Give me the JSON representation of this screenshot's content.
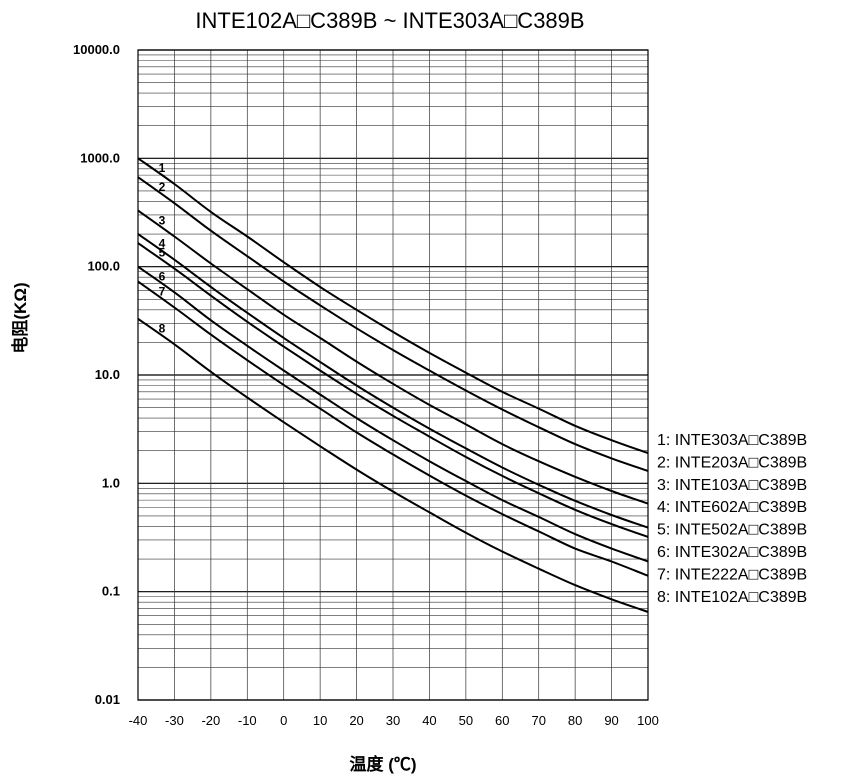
{
  "chart_data": {
    "type": "line",
    "title": "INTE102A□C389B ~ INTE303A□C389B",
    "xlabel": "温度 (℃)",
    "ylabel": "电阻(KΩ)",
    "xlim": [
      -40,
      100
    ],
    "ylim": [
      0.01,
      10000
    ],
    "yscale": "log",
    "grid": true,
    "legend_position": "right",
    "x": [
      -40,
      -30,
      -20,
      -10,
      0,
      10,
      20,
      30,
      40,
      50,
      60,
      70,
      80,
      90,
      100
    ],
    "xticks": [
      "-40",
      "-30",
      "-20",
      "-10",
      "0",
      "10",
      "20",
      "30",
      "40",
      "50",
      "60",
      "70",
      "80",
      "90",
      "100"
    ],
    "yticks": [
      {
        "value": 10000,
        "label": "10000.0"
      },
      {
        "value": 1000,
        "label": "1000.0"
      },
      {
        "value": 100,
        "label": "100.0"
      },
      {
        "value": 10,
        "label": "10.0"
      },
      {
        "value": 1,
        "label": "1.0"
      },
      {
        "value": 0.1,
        "label": "0.1"
      },
      {
        "value": 0.01,
        "label": "0.01"
      }
    ],
    "series": [
      {
        "label": "1",
        "name": "1: INTE303A□C389B",
        "values": [
          1000,
          580,
          320,
          190,
          110,
          65,
          40,
          25,
          16,
          10.5,
          7.0,
          4.9,
          3.4,
          2.5,
          1.9
        ]
      },
      {
        "label": "2",
        "name": "2: INTE203A□C389B",
        "values": [
          670,
          385,
          215,
          125,
          73,
          44,
          27,
          17,
          11,
          7.2,
          4.8,
          3.3,
          2.3,
          1.7,
          1.3
        ]
      },
      {
        "label": "3",
        "name": "3: INTE103A□C389B",
        "values": [
          330,
          190,
          107,
          62,
          36,
          22,
          13.3,
          8.3,
          5.3,
          3.5,
          2.3,
          1.6,
          1.15,
          0.85,
          0.65
        ]
      },
      {
        "label": "4",
        "name": "4: INTE602A□C389B",
        "values": [
          200,
          116,
          65,
          37.5,
          22,
          13.2,
          8.0,
          5.0,
          3.2,
          2.1,
          1.4,
          0.97,
          0.69,
          0.51,
          0.39
        ]
      },
      {
        "label": "5",
        "name": "5: INTE502A□C389B",
        "values": [
          165,
          96,
          54,
          31,
          18.3,
          11,
          6.7,
          4.2,
          2.7,
          1.75,
          1.17,
          0.81,
          0.57,
          0.42,
          0.32
        ]
      },
      {
        "label": "6",
        "name": "6: INTE302A□C389B",
        "values": [
          100,
          58,
          32,
          18.6,
          11,
          6.6,
          4.0,
          2.5,
          1.6,
          1.05,
          0.7,
          0.49,
          0.34,
          0.25,
          0.19
        ]
      },
      {
        "label": "7",
        "name": "7: INTE222A□C389B",
        "values": [
          73,
          42,
          23.6,
          13.7,
          8.1,
          4.9,
          2.95,
          1.85,
          1.18,
          0.77,
          0.52,
          0.36,
          0.25,
          0.19,
          0.14
        ]
      },
      {
        "label": "8",
        "name": "8: INTE102A□C389B",
        "values": [
          33,
          19.2,
          10.7,
          6.2,
          3.67,
          2.2,
          1.34,
          0.84,
          0.54,
          0.35,
          0.235,
          0.163,
          0.115,
          0.085,
          0.065
        ]
      }
    ]
  }
}
